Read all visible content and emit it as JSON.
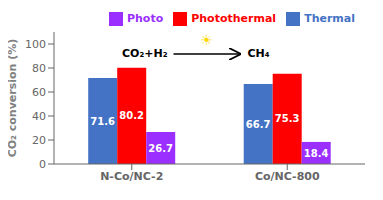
{
  "chart_data": {
    "type": "bar",
    "categories": [
      "N-Co/NC-2",
      "Co/NC-800"
    ],
    "series": [
      {
        "name": "Thermal",
        "color": "#4472c4",
        "values": [
          71.6,
          66.7
        ]
      },
      {
        "name": "Photothermal",
        "color": "#ff0000",
        "values": [
          80.2,
          75.3
        ]
      },
      {
        "name": "Photo",
        "color": "#9b2fff",
        "values": [
          26.7,
          18.4
        ]
      }
    ],
    "ylabel": "CO₂ conversion (%)",
    "ylim": [
      0,
      110
    ],
    "yticks": [
      0,
      20,
      40,
      60,
      80,
      100
    ],
    "data_labels": true,
    "legend": "upper right",
    "grid": false,
    "annotations": [
      "CO₂+H₂",
      "☀",
      "CH₄"
    ]
  }
}
